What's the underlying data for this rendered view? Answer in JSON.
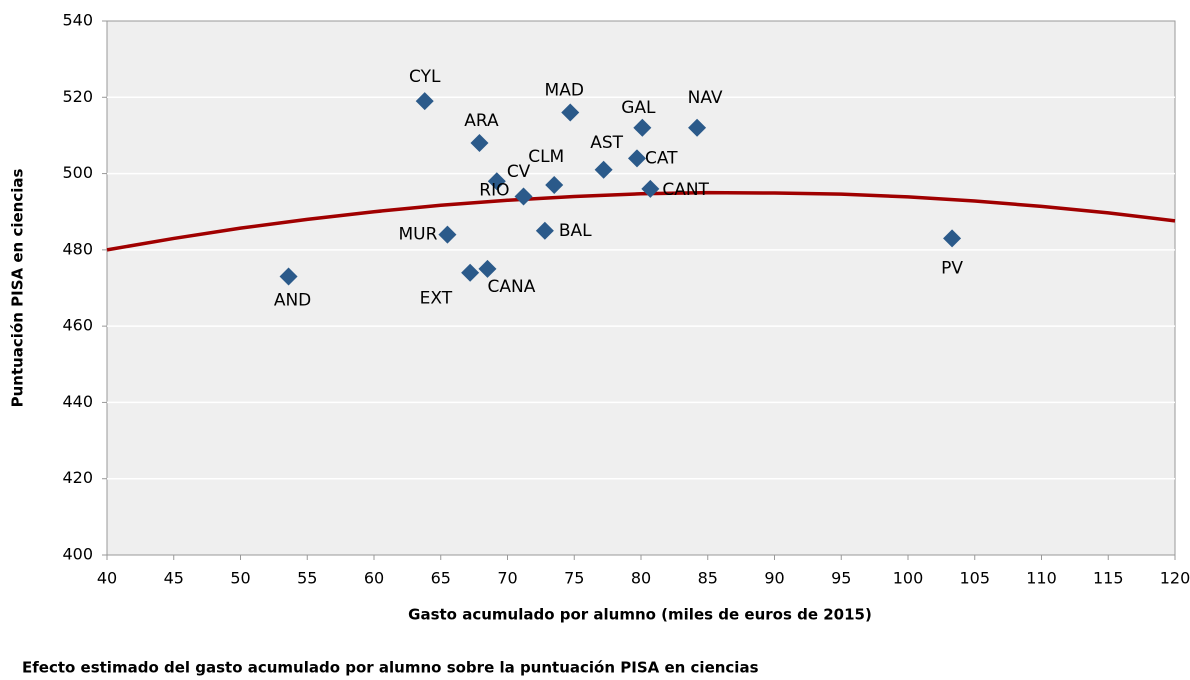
{
  "chart_data": {
    "type": "scatter",
    "xlabel": "Gasto acumulado por alumno (miles de euros de 2015)",
    "ylabel": "Puntuación PISA en ciencias",
    "caption": "Efecto estimado del gasto acumulado por alumno sobre la puntuación PISA en ciencias",
    "labels": [
      "CYL",
      "MAD",
      "GAL",
      "NAV",
      "ARA",
      "AST",
      "CAT",
      "CV",
      "CLM",
      "RIO",
      "CANT",
      "BAL",
      "MUR",
      "PV",
      "AND",
      "EXT",
      "CANA"
    ],
    "x": [
      63.8,
      74.7,
      80.1,
      84.2,
      67.9,
      77.2,
      79.7,
      69.2,
      73.5,
      71.2,
      80.7,
      72.8,
      65.5,
      103.3,
      53.6,
      67.2,
      68.5
    ],
    "values": [
      519,
      516,
      512,
      512,
      508,
      501,
      504,
      498,
      497,
      494,
      496,
      485,
      484,
      483,
      473,
      474,
      475
    ],
    "color": "#2b5a8a",
    "trend": {
      "color": "#a00000",
      "x": [
        40,
        45,
        50,
        55,
        60,
        65,
        70,
        75,
        80,
        85,
        90,
        95,
        100,
        105,
        110,
        115,
        120
      ],
      "values": [
        480.0,
        483.0,
        485.7,
        488.0,
        490.0,
        491.7,
        493.0,
        494.0,
        494.7,
        495.0,
        494.9,
        494.6,
        493.9,
        492.8,
        491.4,
        489.7,
        487.6
      ]
    },
    "xlim": [
      40,
      120
    ],
    "xticks": [
      40,
      45,
      50,
      55,
      60,
      65,
      70,
      75,
      80,
      85,
      90,
      95,
      100,
      105,
      110,
      115,
      120
    ],
    "ylim": [
      400,
      540
    ],
    "yticks": [
      400,
      420,
      440,
      460,
      480,
      500,
      520,
      540
    ],
    "grid": true
  }
}
